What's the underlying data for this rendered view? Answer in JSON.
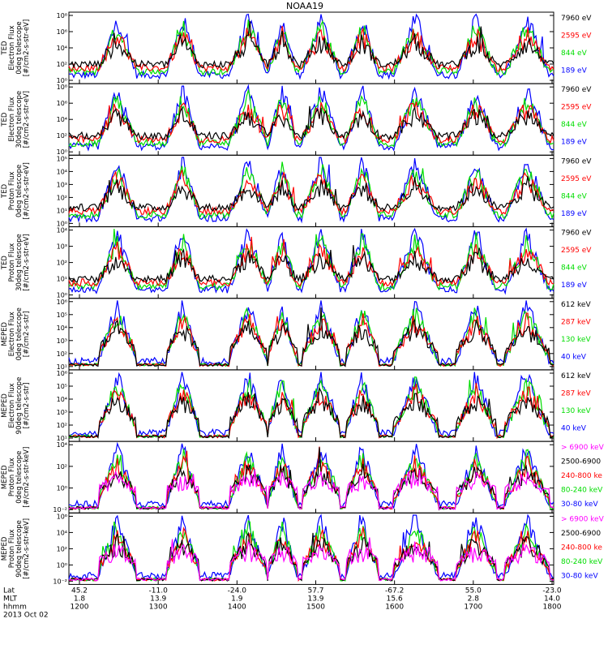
{
  "chart_data": {
    "type": "line",
    "title": "NOAA19",
    "x_axis_rows": [
      {
        "label": "Lat",
        "ticks": [
          "45.2",
          "-11.0",
          "-24.0",
          "57.7",
          "-67.2",
          "55.0",
          "-23.0"
        ]
      },
      {
        "label": "MLT",
        "ticks": [
          "1.8",
          "13.9",
          "1.9",
          "13.9",
          "15.6",
          "2.8",
          "14.0"
        ]
      },
      {
        "label": "hhmm",
        "ticks": [
          "1200",
          "1300",
          "1400",
          "1500",
          "1600",
          "1700",
          "1800"
        ]
      }
    ],
    "date_label": "2013 Oct 02",
    "panels": [
      {
        "ylabel": [
          "TED",
          "Electron Flux",
          "0deg telescope",
          "[#/cm2-s-str-eV]"
        ],
        "yticks": [
          "10⁰",
          "10²",
          "10⁴",
          "10⁶",
          "10⁸"
        ],
        "series": [
          {
            "name": "7960 eV",
            "color": "#000000"
          },
          {
            "name": "2595 eV",
            "color": "#ff0000"
          },
          {
            "name": "844 eV",
            "color": "#00dd00"
          },
          {
            "name": "189 eV",
            "color": "#0000ff"
          }
        ]
      },
      {
        "ylabel": [
          "TED",
          "Electron Flux",
          "30deg telescope",
          "[#/cm2-s-str-eV]"
        ],
        "yticks": [
          "10⁰",
          "10²",
          "10⁴",
          "10⁶",
          "10⁸"
        ],
        "series": [
          {
            "name": "7960 eV",
            "color": "#000000"
          },
          {
            "name": "2595 eV",
            "color": "#ff0000"
          },
          {
            "name": "844 eV",
            "color": "#00dd00"
          },
          {
            "name": "189 eV",
            "color": "#0000ff"
          }
        ]
      },
      {
        "ylabel": [
          "TED",
          "Proton Flux",
          "0deg telescope",
          "[#/cm2-s-str-eV]"
        ],
        "yticks": [
          "10⁰",
          "10¹",
          "10²",
          "10³",
          "10⁴",
          "10⁵"
        ],
        "series": [
          {
            "name": "7960 eV",
            "color": "#000000"
          },
          {
            "name": "2595 eV",
            "color": "#ff0000"
          },
          {
            "name": "844 eV",
            "color": "#00dd00"
          },
          {
            "name": "189 eV",
            "color": "#0000ff"
          }
        ]
      },
      {
        "ylabel": [
          "TED",
          "Proton Flux",
          "30deg telescope",
          "[#/cm2-s-str-eV]"
        ],
        "yticks": [
          "10⁰",
          "10¹",
          "10²",
          "10³",
          "10⁴"
        ],
        "series": [
          {
            "name": "7960 eV",
            "color": "#000000"
          },
          {
            "name": "2595 eV",
            "color": "#ff0000"
          },
          {
            "name": "844 eV",
            "color": "#00dd00"
          },
          {
            "name": "189 eV",
            "color": "#0000ff"
          }
        ]
      },
      {
        "ylabel": [
          "MEPED",
          "Electron Flux",
          "0deg telescope",
          "[#/cm2-s-str]"
        ],
        "yticks": [
          "10¹",
          "10²",
          "10³",
          "10⁴",
          "10⁵",
          "10⁶"
        ],
        "series": [
          {
            "name": "612 keV",
            "color": "#000000"
          },
          {
            "name": "287 keV",
            "color": "#ff0000"
          },
          {
            "name": "130 keV",
            "color": "#00dd00"
          },
          {
            "name": "40 keV",
            "color": "#0000ff"
          }
        ]
      },
      {
        "ylabel": [
          "MEPED",
          "Electron Flux",
          "90deg telescope",
          "[#/cm2-s-str]"
        ],
        "yticks": [
          "10¹",
          "10²",
          "10³",
          "10⁴",
          "10⁵",
          "10⁶"
        ],
        "series": [
          {
            "name": "612 keV",
            "color": "#000000"
          },
          {
            "name": "287 keV",
            "color": "#ff0000"
          },
          {
            "name": "130 keV",
            "color": "#00dd00"
          },
          {
            "name": "40 keV",
            "color": "#0000ff"
          }
        ]
      },
      {
        "ylabel": [
          "MEPED",
          "Proton Flux",
          "0deg telescope",
          "[#/cm2-s-str-keV]"
        ],
        "yticks": [
          "10⁻²",
          "10⁰",
          "10²",
          "10⁴"
        ],
        "series": [
          {
            "name": "> 6900 keV",
            "color": "#ff00ff"
          },
          {
            "name": "2500-6900",
            "color": "#000000"
          },
          {
            "name": "240-800 ke",
            "color": "#ff0000"
          },
          {
            "name": "80-240 keV",
            "color": "#00dd00"
          },
          {
            "name": "30-80 keV",
            "color": "#0000ff"
          }
        ]
      },
      {
        "ylabel": [
          "MEPED",
          "Proton Flux",
          "90deg telescope",
          "[#/cm2-s-str-keV]"
        ],
        "yticks": [
          "10⁻²",
          "10⁰",
          "10²",
          "10⁴",
          "10⁶"
        ],
        "series": [
          {
            "name": "> 6900 keV",
            "color": "#ff00ff"
          },
          {
            "name": "2500-6900",
            "color": "#000000"
          },
          {
            "name": "240-800 ke",
            "color": "#ff0000"
          },
          {
            "name": "80-240 keV",
            "color": "#00dd00"
          },
          {
            "name": "30-80 keV",
            "color": "#0000ff"
          }
        ]
      }
    ]
  }
}
